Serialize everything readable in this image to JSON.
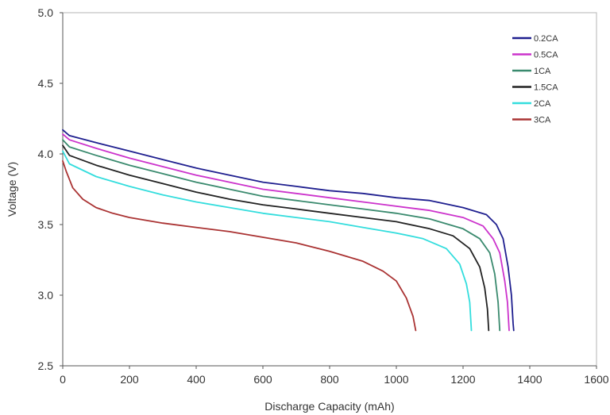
{
  "chart_data": {
    "type": "line",
    "title": "",
    "xlabel": "Discharge Capacity (mAh)",
    "ylabel": "Voltage (V)",
    "xlim": [
      0,
      1600
    ],
    "ylim": [
      2.5,
      5.0
    ],
    "x_ticks": [
      "0",
      "200",
      "400",
      "600",
      "800",
      "1000",
      "1200",
      "1400",
      "1600"
    ],
    "y_ticks": [
      "2.5",
      "3.0",
      "3.5",
      "4.0",
      "4.5",
      "5.0"
    ],
    "grid": false,
    "legend_position": "top-right",
    "series": [
      {
        "name": "0.2CA",
        "color": "#1f1f8f",
        "points": [
          [
            0,
            4.17
          ],
          [
            20,
            4.13
          ],
          [
            100,
            4.08
          ],
          [
            200,
            4.02
          ],
          [
            300,
            3.96
          ],
          [
            400,
            3.9
          ],
          [
            500,
            3.85
          ],
          [
            600,
            3.8
          ],
          [
            700,
            3.77
          ],
          [
            800,
            3.74
          ],
          [
            900,
            3.72
          ],
          [
            1000,
            3.69
          ],
          [
            1100,
            3.67
          ],
          [
            1200,
            3.62
          ],
          [
            1270,
            3.57
          ],
          [
            1300,
            3.5
          ],
          [
            1320,
            3.4
          ],
          [
            1335,
            3.2
          ],
          [
            1345,
            3.0
          ],
          [
            1350,
            2.8
          ],
          [
            1352,
            2.75
          ]
        ]
      },
      {
        "name": "0.5CA",
        "color": "#cc33cc",
        "points": [
          [
            0,
            4.14
          ],
          [
            20,
            4.1
          ],
          [
            100,
            4.04
          ],
          [
            200,
            3.97
          ],
          [
            300,
            3.91
          ],
          [
            400,
            3.85
          ],
          [
            500,
            3.8
          ],
          [
            600,
            3.75
          ],
          [
            700,
            3.72
          ],
          [
            800,
            3.69
          ],
          [
            900,
            3.66
          ],
          [
            1000,
            3.63
          ],
          [
            1100,
            3.6
          ],
          [
            1200,
            3.55
          ],
          [
            1260,
            3.49
          ],
          [
            1290,
            3.4
          ],
          [
            1310,
            3.3
          ],
          [
            1325,
            3.1
          ],
          [
            1333,
            2.95
          ],
          [
            1338,
            2.75
          ]
        ]
      },
      {
        "name": "1CA",
        "color": "#3a8a6e",
        "points": [
          [
            0,
            4.1
          ],
          [
            20,
            4.05
          ],
          [
            100,
            3.99
          ],
          [
            200,
            3.92
          ],
          [
            300,
            3.86
          ],
          [
            400,
            3.8
          ],
          [
            500,
            3.75
          ],
          [
            600,
            3.7
          ],
          [
            700,
            3.67
          ],
          [
            800,
            3.64
          ],
          [
            900,
            3.61
          ],
          [
            1000,
            3.58
          ],
          [
            1100,
            3.54
          ],
          [
            1200,
            3.47
          ],
          [
            1250,
            3.4
          ],
          [
            1280,
            3.3
          ],
          [
            1295,
            3.15
          ],
          [
            1305,
            2.95
          ],
          [
            1310,
            2.75
          ]
        ]
      },
      {
        "name": "1.5CA",
        "color": "#222222",
        "points": [
          [
            0,
            4.06
          ],
          [
            20,
            3.99
          ],
          [
            100,
            3.92
          ],
          [
            200,
            3.85
          ],
          [
            300,
            3.79
          ],
          [
            400,
            3.73
          ],
          [
            500,
            3.68
          ],
          [
            600,
            3.64
          ],
          [
            700,
            3.61
          ],
          [
            800,
            3.58
          ],
          [
            900,
            3.55
          ],
          [
            1000,
            3.52
          ],
          [
            1100,
            3.47
          ],
          [
            1170,
            3.42
          ],
          [
            1220,
            3.33
          ],
          [
            1250,
            3.2
          ],
          [
            1265,
            3.05
          ],
          [
            1273,
            2.9
          ],
          [
            1277,
            2.75
          ]
        ]
      },
      {
        "name": "2CA",
        "color": "#33dddd",
        "points": [
          [
            0,
            4.02
          ],
          [
            20,
            3.93
          ],
          [
            100,
            3.84
          ],
          [
            200,
            3.77
          ],
          [
            300,
            3.71
          ],
          [
            400,
            3.66
          ],
          [
            500,
            3.62
          ],
          [
            600,
            3.58
          ],
          [
            700,
            3.55
          ],
          [
            800,
            3.52
          ],
          [
            900,
            3.48
          ],
          [
            1000,
            3.44
          ],
          [
            1080,
            3.4
          ],
          [
            1150,
            3.33
          ],
          [
            1190,
            3.22
          ],
          [
            1210,
            3.08
          ],
          [
            1220,
            2.95
          ],
          [
            1225,
            2.75
          ]
        ]
      },
      {
        "name": "3CA",
        "color": "#aa3333",
        "points": [
          [
            0,
            3.95
          ],
          [
            10,
            3.88
          ],
          [
            30,
            3.76
          ],
          [
            60,
            3.68
          ],
          [
            100,
            3.62
          ],
          [
            150,
            3.58
          ],
          [
            200,
            3.55
          ],
          [
            300,
            3.51
          ],
          [
            400,
            3.48
          ],
          [
            500,
            3.45
          ],
          [
            600,
            3.41
          ],
          [
            700,
            3.37
          ],
          [
            800,
            3.31
          ],
          [
            900,
            3.24
          ],
          [
            960,
            3.17
          ],
          [
            1000,
            3.1
          ],
          [
            1030,
            2.98
          ],
          [
            1050,
            2.85
          ],
          [
            1058,
            2.75
          ]
        ]
      }
    ]
  }
}
